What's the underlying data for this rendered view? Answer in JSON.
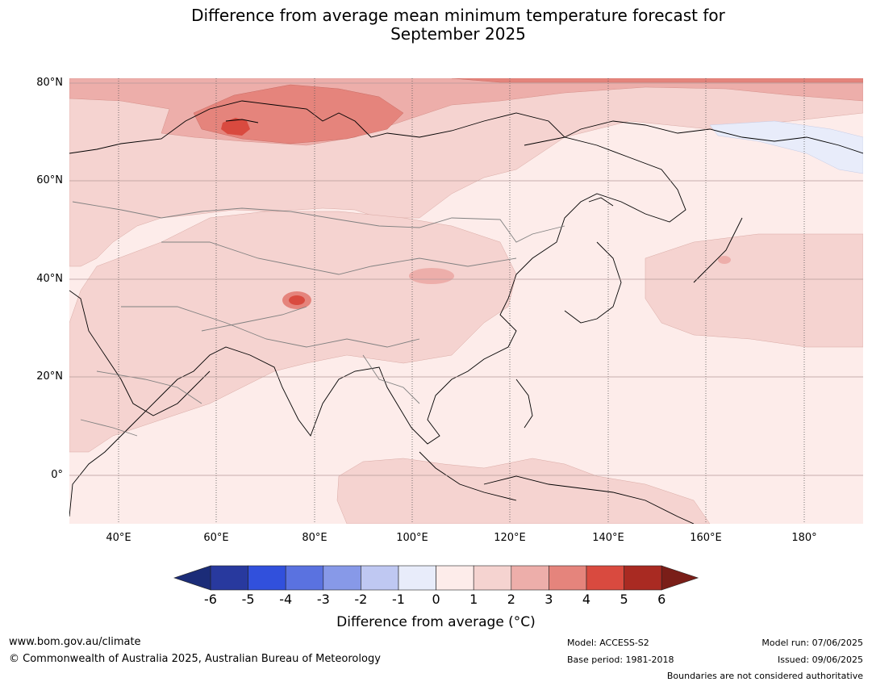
{
  "title_line1": "Difference from average mean minimum temperature forecast for",
  "title_line2": "September 2025",
  "lat_labels": [
    "80°N",
    "60°N",
    "40°N",
    "20°N",
    "0°"
  ],
  "lon_labels": [
    "40°E",
    "60°E",
    "80°E",
    "100°E",
    "120°E",
    "140°E",
    "160°E",
    "180°"
  ],
  "colorbar": {
    "labels": [
      "-6",
      "-5",
      "-4",
      "-3",
      "-2",
      "-1",
      "0",
      "1",
      "2",
      "3",
      "4",
      "5",
      "6"
    ],
    "colors": [
      "#28399e",
      "#3150dc",
      "#5a72e0",
      "#8799e8",
      "#bfc8f2",
      "#e8ecfa",
      "#fdecea",
      "#f5d3d0",
      "#edaeaa",
      "#e5847c",
      "#d94a3f",
      "#a92a22"
    ],
    "under_color": "#1b2c78",
    "over_color": "#7a1e18",
    "title": "Difference from average (°C)"
  },
  "footer": {
    "website": "www.bom.gov.au/climate",
    "copyright": "© Commonwealth of Australia 2025, Australian Bureau of Meteorology",
    "model": "Model: ACCESS-S2",
    "base_period": "Base period: 1981-2018",
    "model_run": "Model run: 07/06/2025",
    "issued": "Issued: 09/06/2025",
    "disclaimer": "Boundaries are not considered authoritative"
  }
}
